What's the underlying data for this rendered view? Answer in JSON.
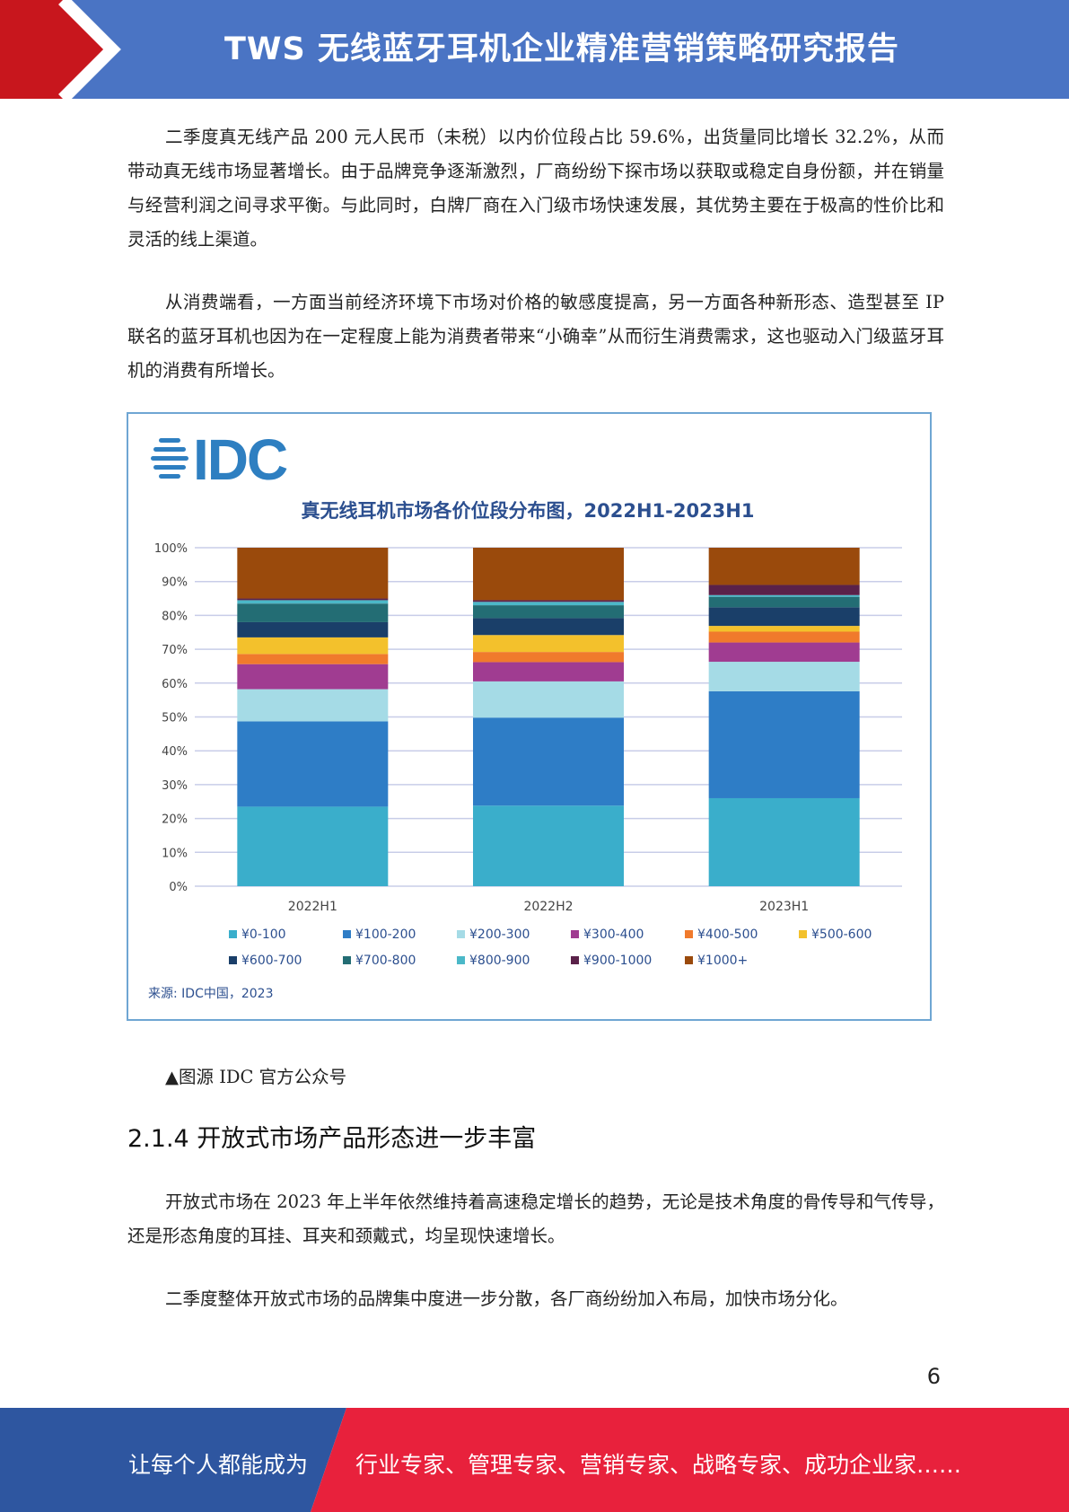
{
  "header": {
    "title": "TWS 无线蓝牙耳机企业精准营销策略研究报告",
    "bar_color": "#4a74c4",
    "accent_color": "#c8161d"
  },
  "body": {
    "paragraph_1": "二季度真无线产品 200 元人民币（未税）以内价位段占比 59.6%，出货量同比增长 32.2%，从而带动真无线市场显著增长。由于品牌竞争逐渐激烈，厂商纷纷下探市场以获取或稳定自身份额，并在销量与经营利润之间寻求平衡。与此同时，白牌厂商在入门级市场快速发展，其优势主要在于极高的性价比和灵活的线上渠道。",
    "paragraph_2": "从消费端看，一方面当前经济环境下市场对价格的敏感度提高，另一方面各种新形态、造型甚至 IP 联名的蓝牙耳机也因为在一定程度上能为消费者带来“小确幸”从而衍生消费需求，这也驱动入门级蓝牙耳机的消费有所增长。",
    "caption": "▲图源 IDC 官方公众号",
    "section_heading": "2.1.4 开放式市场产品形态进一步丰富",
    "paragraph_3": "开放式市场在 2023 年上半年依然维持着高速稳定增长的趋势，无论是技术角度的骨传导和气传导，还是形态角度的耳挂、耳夹和颈戴式，均呈现快速增长。",
    "paragraph_4": "二季度整体开放式市场的品牌集中度进一步分散，各厂商纷纷加入布局，加快市场分化。"
  },
  "logo": {
    "text": "IDC",
    "color": "#2e7fc1"
  },
  "source_note": "来源: IDC中国，2023",
  "page_number": "6",
  "footer": {
    "left_text": "让每个人都能成为",
    "right_text": "行业专家、管理专家、营销专家、战略专家、成功企业家……",
    "left_color": "#2e56a0",
    "right_color": "#e8213c"
  },
  "chart_data": {
    "type": "bar",
    "stacked": true,
    "title": "真无线耳机市场各价位段分布图，2022H1-2023H1",
    "categories": [
      "2022H1",
      "2022H2",
      "2023H1"
    ],
    "ylim": [
      0,
      100
    ],
    "y_ticks": [
      "0%",
      "10%",
      "20%",
      "30%",
      "40%",
      "50%",
      "60%",
      "70%",
      "80%",
      "90%",
      "100%"
    ],
    "grid": true,
    "legend_position": "bottom",
    "series": [
      {
        "name": "¥0-100",
        "color": "#3aaecb",
        "values": [
          23.5,
          23.8,
          26.0
        ]
      },
      {
        "name": "¥100-200",
        "color": "#2e7dc6",
        "values": [
          25.2,
          26.0,
          31.6
        ]
      },
      {
        "name": "¥200-300",
        "color": "#a5dbe6",
        "values": [
          9.5,
          10.7,
          8.7
        ]
      },
      {
        "name": "¥300-400",
        "color": "#a03c91",
        "values": [
          7.4,
          5.7,
          5.7
        ]
      },
      {
        "name": "¥400-500",
        "color": "#f07a2c",
        "values": [
          3.0,
          3.0,
          3.2
        ]
      },
      {
        "name": "¥500-600",
        "color": "#f3c12c",
        "values": [
          4.9,
          5.0,
          1.7
        ]
      },
      {
        "name": "¥600-700",
        "color": "#1a3f69",
        "values": [
          4.5,
          5.0,
          5.5
        ]
      },
      {
        "name": "¥700-800",
        "color": "#236d74",
        "values": [
          5.5,
          3.8,
          3.1
        ]
      },
      {
        "name": "¥800-900",
        "color": "#4bb8c8",
        "values": [
          1.0,
          1.0,
          0.5
        ]
      },
      {
        "name": "¥900-1000",
        "color": "#5a2149",
        "values": [
          0.5,
          0.5,
          3.0
        ]
      },
      {
        "name": "¥1000+",
        "color": "#9a4a0c",
        "values": [
          15.0,
          15.5,
          11.0
        ]
      }
    ]
  }
}
